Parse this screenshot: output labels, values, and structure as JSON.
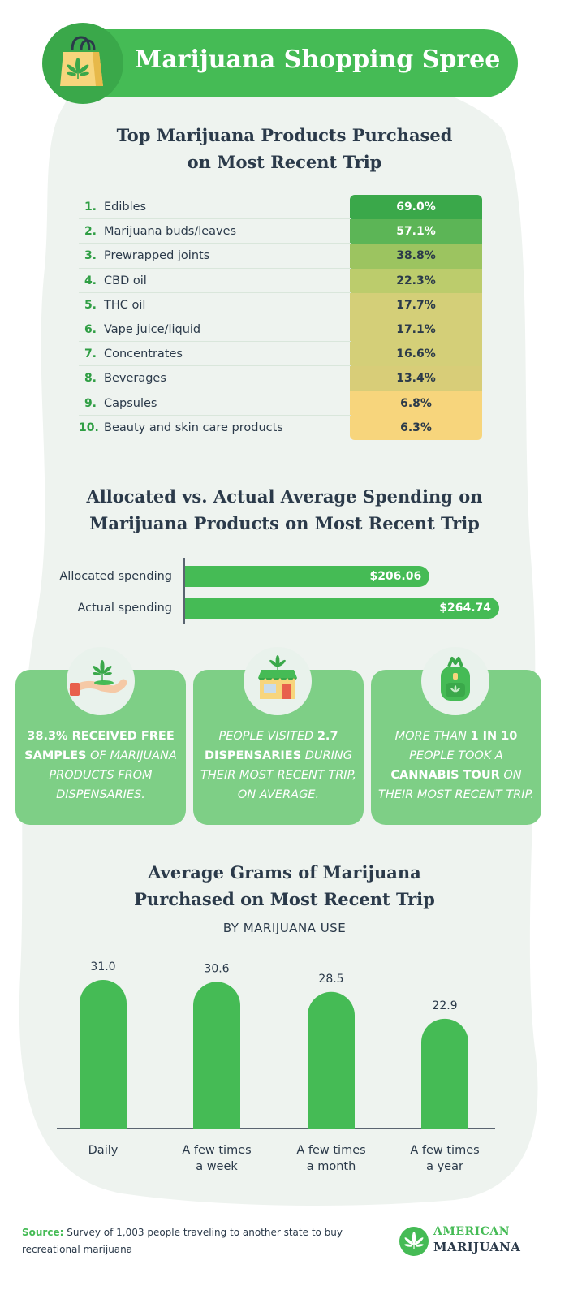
{
  "header": {
    "title": "Marijuana Shopping Spree"
  },
  "products_section": {
    "title_line1": "Top Marijuana Products Purchased",
    "title_line2": "on Most Recent Trip"
  },
  "chart_data": [
    {
      "type": "table",
      "title": "Top Marijuana Products Purchased on Most Recent Trip",
      "rows": [
        {
          "rank": "1.",
          "name": "Edibles",
          "value": 69.0,
          "label": "69.0%",
          "color": "#3aa84a",
          "text_color": "#ffffff"
        },
        {
          "rank": "2.",
          "name": "Marijuana buds/leaves",
          "value": 57.1,
          "label": "57.1%",
          "color": "#5cb556",
          "text_color": "#ffffff"
        },
        {
          "rank": "3.",
          "name": "Prewrapped joints",
          "value": 38.8,
          "label": "38.8%",
          "color": "#9cc460",
          "text_color": "#2b3a4a"
        },
        {
          "rank": "4.",
          "name": "CBD oil",
          "value": 22.3,
          "label": "22.3%",
          "color": "#bccc6c",
          "text_color": "#2b3a4a"
        },
        {
          "rank": "5.",
          "name": "THC oil",
          "value": 17.7,
          "label": "17.7%",
          "color": "#d4cf78",
          "text_color": "#2b3a4a"
        },
        {
          "rank": "6.",
          "name": "Vape juice/liquid",
          "value": 17.1,
          "label": "17.1%",
          "color": "#d4cf78",
          "text_color": "#2b3a4a"
        },
        {
          "rank": "7.",
          "name": "Concentrates",
          "value": 16.6,
          "label": "16.6%",
          "color": "#d4cf78",
          "text_color": "#2b3a4a"
        },
        {
          "rank": "8.",
          "name": "Beverages",
          "value": 13.4,
          "label": "13.4%",
          "color": "#d8cd78",
          "text_color": "#2b3a4a"
        },
        {
          "rank": "9.",
          "name": "Capsules",
          "value": 6.8,
          "label": "6.8%",
          "color": "#f7d57c",
          "text_color": "#2b3a4a"
        },
        {
          "rank": "10.",
          "name": "Beauty and skin care products",
          "value": 6.3,
          "label": "6.3%",
          "color": "#f7d57c",
          "text_color": "#2b3a4a"
        }
      ]
    },
    {
      "type": "bar",
      "orientation": "horizontal",
      "title": "Allocated vs. Actual Average Spending on Marijuana Products on Most Recent Trip",
      "categories": [
        "Allocated spending",
        "Actual spending"
      ],
      "values": [
        206.06,
        264.74
      ],
      "labels": [
        "$206.06",
        "$264.74"
      ],
      "xlim": [
        0,
        264.74
      ]
    },
    {
      "type": "bar",
      "title": "Average Grams of Marijuana Purchased on Most Recent Trip",
      "subtitle": "BY MARIJUANA USE",
      "categories": [
        [
          "Daily"
        ],
        [
          "A few times",
          "a week"
        ],
        [
          "A few times",
          "a month"
        ],
        [
          "A few times",
          "a year"
        ]
      ],
      "values": [
        31.0,
        30.6,
        28.5,
        22.9
      ],
      "labels": [
        "31.0",
        "30.6",
        "28.5",
        "22.9"
      ],
      "xlabel": "",
      "ylabel": "",
      "ylim": [
        0,
        31.0
      ]
    }
  ],
  "spending_section": {
    "title_line1": "Allocated vs. Actual Average Spending on",
    "title_line2": "Marijuana Products on Most Recent Trip"
  },
  "cards": {
    "samples": {
      "bold": "38.3% RECEIVED FREE SAMPLES",
      "rest": " OF MARIJUANA PRODUCTS FROM DISPENSARIES."
    },
    "dispensaries": {
      "lead": "PEOPLE VISITED ",
      "bold": "2.7 DISPENSARIES",
      "rest": " DURING THEIR MOST RECENT TRIP, ON AVERAGE."
    },
    "tour": {
      "lead": "MORE THAN ",
      "bold1": "1 IN 10",
      "mid": " PEOPLE TOOK A ",
      "bold2": "CANNABIS TOUR",
      "rest": " ON THEIR MOST RECENT TRIP."
    }
  },
  "grams_section": {
    "title_line1": "Average Grams of Marijuana",
    "title_line2": "Purchased on Most Recent Trip",
    "subtitle": "BY MARIJUANA USE"
  },
  "footer": {
    "source_label": "Source:",
    "source_text": " Survey of 1,003 people traveling to another state to buy recreational marijuana",
    "logo_line1": "AMERICAN",
    "logo_line2": "MARIJUANA"
  },
  "colors": {
    "brand_green": "#45bb55",
    "card_green": "#7ecf86",
    "blob": "#eef3ef",
    "text": "#2b3a4a"
  }
}
